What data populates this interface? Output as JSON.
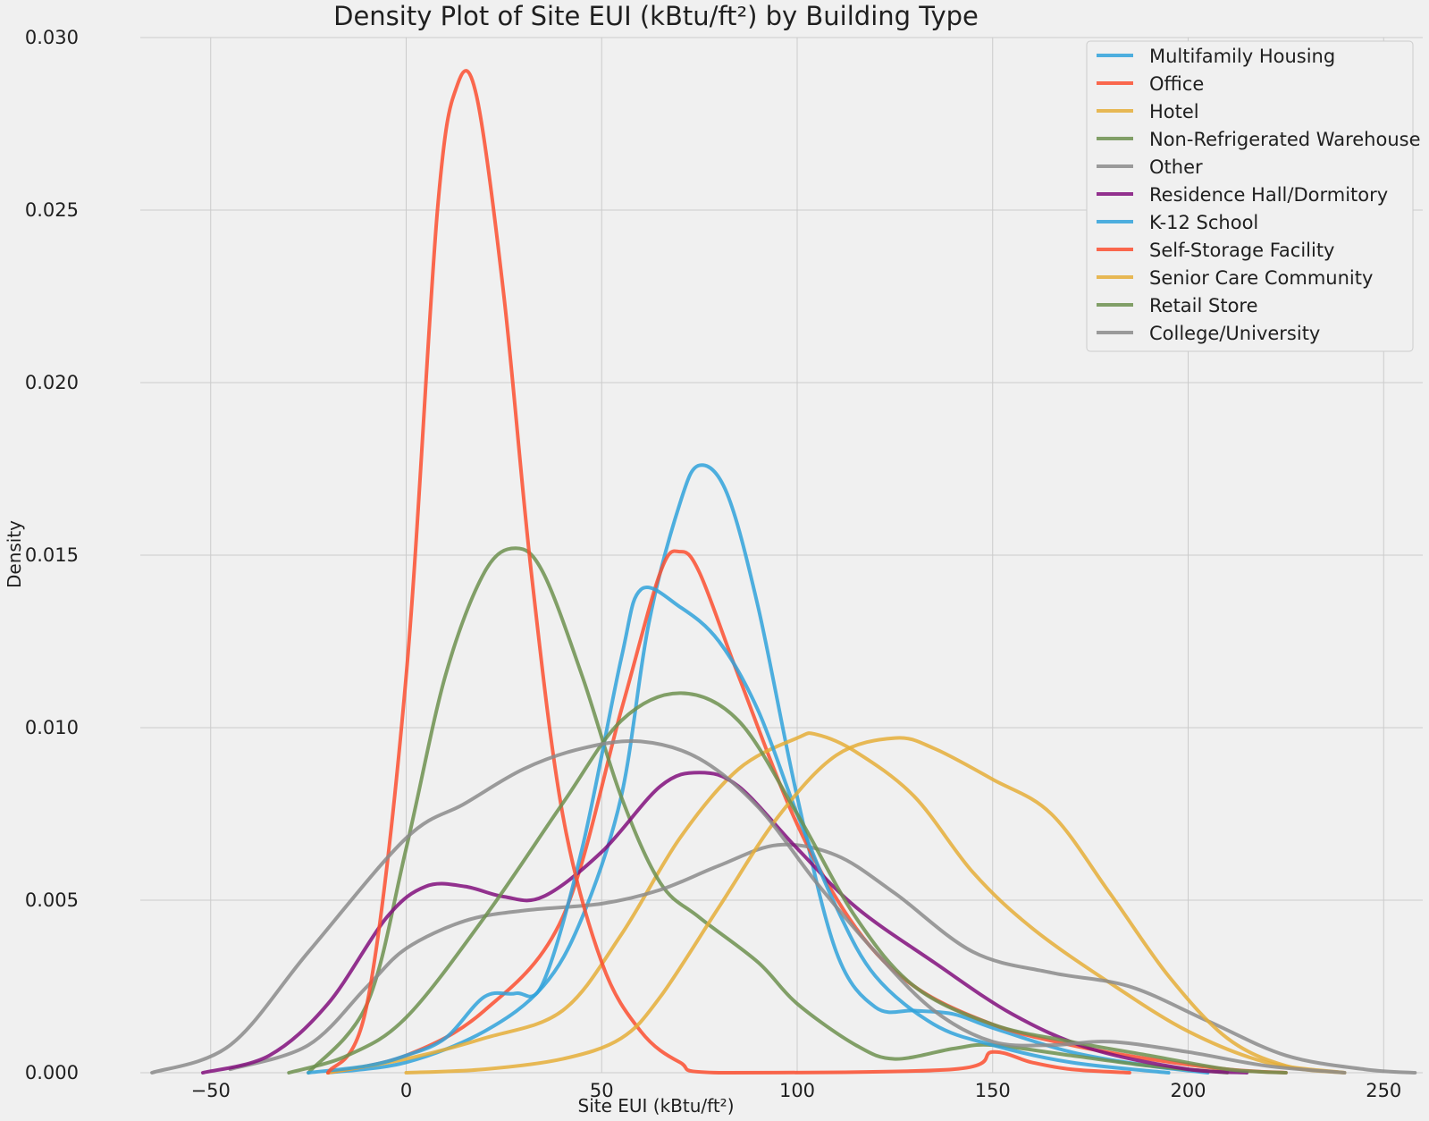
{
  "chart_data": {
    "type": "line",
    "title": "Density Plot of Site EUI (kBtu/ft²) by Building Type",
    "xlabel": "Site EUI (kBtu/ft²)",
    "ylabel": "Density",
    "xlim": [
      -68,
      260
    ],
    "ylim": [
      0,
      0.03
    ],
    "xticks": [
      -50,
      0,
      50,
      100,
      150,
      200,
      250
    ],
    "xtick_labels": [
      "−50",
      "0",
      "50",
      "100",
      "150",
      "200",
      "250"
    ],
    "yticks": [
      0,
      0.005,
      0.01,
      0.015,
      0.02,
      0.025,
      0.03
    ],
    "ytick_labels": [
      "0.000",
      "0.005",
      "0.010",
      "0.015",
      "0.020",
      "0.025",
      "0.030"
    ],
    "grid": true,
    "legend_position": "top-right",
    "series": [
      {
        "name": "Multifamily Housing",
        "color": "#30a2da",
        "points": [
          [
            -20,
            0
          ],
          [
            0,
            0.0003
          ],
          [
            20,
            0.0012
          ],
          [
            35,
            0.0025
          ],
          [
            45,
            0.0045
          ],
          [
            55,
            0.008
          ],
          [
            62,
            0.013
          ],
          [
            70,
            0.0165
          ],
          [
            75,
            0.0176
          ],
          [
            82,
            0.0168
          ],
          [
            90,
            0.0135
          ],
          [
            100,
            0.008
          ],
          [
            110,
            0.0035
          ],
          [
            120,
            0.0019
          ],
          [
            130,
            0.0018
          ],
          [
            140,
            0.0017
          ],
          [
            150,
            0.0013
          ],
          [
            170,
            0.0006
          ],
          [
            190,
            0.0002
          ],
          [
            205,
            0
          ]
        ]
      },
      {
        "name": "Office",
        "color": "#fc4f30",
        "points": [
          [
            -20,
            0
          ],
          [
            0,
            0.0005
          ],
          [
            20,
            0.0018
          ],
          [
            40,
            0.0045
          ],
          [
            55,
            0.0105
          ],
          [
            65,
            0.0145
          ],
          [
            70,
            0.0151
          ],
          [
            75,
            0.0145
          ],
          [
            85,
            0.0115
          ],
          [
            100,
            0.0072
          ],
          [
            115,
            0.0042
          ],
          [
            130,
            0.0025
          ],
          [
            150,
            0.0014
          ],
          [
            170,
            0.0008
          ],
          [
            190,
            0.0004
          ],
          [
            210,
            0.0001
          ],
          [
            225,
            0
          ]
        ]
      },
      {
        "name": "Hotel",
        "color": "#e5ae38",
        "points": [
          [
            -20,
            0
          ],
          [
            0,
            0.0004
          ],
          [
            20,
            0.001
          ],
          [
            40,
            0.0018
          ],
          [
            55,
            0.004
          ],
          [
            70,
            0.0068
          ],
          [
            85,
            0.0088
          ],
          [
            100,
            0.0097
          ],
          [
            105,
            0.0098
          ],
          [
            115,
            0.0093
          ],
          [
            130,
            0.008
          ],
          [
            145,
            0.0058
          ],
          [
            160,
            0.0042
          ],
          [
            180,
            0.0026
          ],
          [
            200,
            0.0012
          ],
          [
            220,
            0.0003
          ],
          [
            240,
            0
          ]
        ]
      },
      {
        "name": "Non-Refrigerated Warehouse",
        "color": "#6d904f",
        "points": [
          [
            -25,
            0
          ],
          [
            -10,
            0.002
          ],
          [
            0,
            0.0065
          ],
          [
            10,
            0.0115
          ],
          [
            20,
            0.0145
          ],
          [
            28,
            0.0152
          ],
          [
            35,
            0.0145
          ],
          [
            45,
            0.0115
          ],
          [
            55,
            0.008
          ],
          [
            65,
            0.0055
          ],
          [
            75,
            0.0045
          ],
          [
            90,
            0.0032
          ],
          [
            100,
            0.002
          ],
          [
            115,
            0.0008
          ],
          [
            125,
            0.0004
          ],
          [
            140,
            0.0007
          ],
          [
            150,
            0.0008
          ],
          [
            170,
            0.0005
          ],
          [
            190,
            0.0002
          ],
          [
            210,
            0
          ]
        ]
      },
      {
        "name": "Other",
        "color": "#8b8b8b",
        "points": [
          [
            -45,
            0.0001
          ],
          [
            -25,
            0.0008
          ],
          [
            -10,
            0.0025
          ],
          [
            0,
            0.0036
          ],
          [
            15,
            0.0044
          ],
          [
            30,
            0.0047
          ],
          [
            50,
            0.0049
          ],
          [
            65,
            0.0053
          ],
          [
            80,
            0.006
          ],
          [
            95,
            0.0066
          ],
          [
            110,
            0.0063
          ],
          [
            125,
            0.0052
          ],
          [
            145,
            0.0035
          ],
          [
            165,
            0.0029
          ],
          [
            185,
            0.0025
          ],
          [
            205,
            0.0015
          ],
          [
            225,
            0.0005
          ],
          [
            245,
            0.0001
          ],
          [
            258,
            0
          ]
        ]
      },
      {
        "name": "Residence Hall/Dormitory",
        "color": "#810f7c",
        "points": [
          [
            -52,
            0
          ],
          [
            -35,
            0.0005
          ],
          [
            -20,
            0.002
          ],
          [
            -5,
            0.0045
          ],
          [
            5,
            0.0054
          ],
          [
            15,
            0.0054
          ],
          [
            25,
            0.0051
          ],
          [
            35,
            0.0051
          ],
          [
            50,
            0.0064
          ],
          [
            65,
            0.0083
          ],
          [
            75,
            0.0087
          ],
          [
            85,
            0.0083
          ],
          [
            100,
            0.0065
          ],
          [
            115,
            0.0048
          ],
          [
            135,
            0.0032
          ],
          [
            155,
            0.0017
          ],
          [
            175,
            0.0007
          ],
          [
            200,
            0.0001
          ],
          [
            215,
            0
          ]
        ]
      },
      {
        "name": "K-12 School",
        "color": "#30a2da",
        "points": [
          [
            -25,
            0
          ],
          [
            -10,
            0.0002
          ],
          [
            0,
            0.0005
          ],
          [
            10,
            0.001
          ],
          [
            20,
            0.0022
          ],
          [
            28,
            0.0023
          ],
          [
            35,
            0.0026
          ],
          [
            45,
            0.0065
          ],
          [
            55,
            0.012
          ],
          [
            60,
            0.014
          ],
          [
            70,
            0.0135
          ],
          [
            80,
            0.0125
          ],
          [
            90,
            0.0105
          ],
          [
            100,
            0.0075
          ],
          [
            110,
            0.0048
          ],
          [
            120,
            0.0028
          ],
          [
            135,
            0.0014
          ],
          [
            150,
            0.0008
          ],
          [
            170,
            0.0003
          ],
          [
            195,
            0
          ]
        ]
      },
      {
        "name": "Self-Storage Facility",
        "color": "#fc4f30",
        "points": [
          [
            -20,
            0
          ],
          [
            -10,
            0.002
          ],
          [
            0,
            0.0115
          ],
          [
            8,
            0.025
          ],
          [
            13,
            0.0286
          ],
          [
            18,
            0.0283
          ],
          [
            25,
            0.0225
          ],
          [
            32,
            0.0145
          ],
          [
            40,
            0.0075
          ],
          [
            50,
            0.0032
          ],
          [
            60,
            0.0012
          ],
          [
            70,
            0.0003
          ],
          [
            80,
            0
          ],
          [
            140,
            0.0001
          ],
          [
            150,
            0.0006
          ],
          [
            160,
            0.0003
          ],
          [
            170,
            0.0001
          ],
          [
            185,
            0
          ]
        ]
      },
      {
        "name": "Senior Care Community",
        "color": "#e5ae38",
        "points": [
          [
            0,
            0
          ],
          [
            20,
            0.0001
          ],
          [
            40,
            0.0004
          ],
          [
            55,
            0.001
          ],
          [
            65,
            0.0022
          ],
          [
            80,
            0.0048
          ],
          [
            95,
            0.0074
          ],
          [
            110,
            0.0092
          ],
          [
            125,
            0.0097
          ],
          [
            135,
            0.0094
          ],
          [
            150,
            0.0085
          ],
          [
            165,
            0.0075
          ],
          [
            180,
            0.0052
          ],
          [
            195,
            0.0028
          ],
          [
            210,
            0.001
          ],
          [
            225,
            0.0002
          ],
          [
            240,
            0
          ]
        ]
      },
      {
        "name": "Retail Store",
        "color": "#6d904f",
        "points": [
          [
            -30,
            0
          ],
          [
            -15,
            0.0005
          ],
          [
            0,
            0.0016
          ],
          [
            20,
            0.0045
          ],
          [
            40,
            0.0078
          ],
          [
            55,
            0.0102
          ],
          [
            70,
            0.011
          ],
          [
            85,
            0.0102
          ],
          [
            100,
            0.0075
          ],
          [
            115,
            0.0045
          ],
          [
            130,
            0.0025
          ],
          [
            150,
            0.0014
          ],
          [
            170,
            0.0009
          ],
          [
            190,
            0.0005
          ],
          [
            210,
            0.0001
          ],
          [
            225,
            0
          ]
        ]
      },
      {
        "name": "College/University",
        "color": "#8b8b8b",
        "points": [
          [
            -65,
            0
          ],
          [
            -45,
            0.0008
          ],
          [
            -25,
            0.0035
          ],
          [
            0,
            0.0068
          ],
          [
            15,
            0.0078
          ],
          [
            30,
            0.0088
          ],
          [
            45,
            0.0094
          ],
          [
            60,
            0.0096
          ],
          [
            75,
            0.0091
          ],
          [
            90,
            0.0077
          ],
          [
            105,
            0.0055
          ],
          [
            120,
            0.0035
          ],
          [
            135,
            0.0018
          ],
          [
            150,
            0.0009
          ],
          [
            165,
            0.0008
          ],
          [
            180,
            0.0009
          ],
          [
            200,
            0.0006
          ],
          [
            220,
            0.0002
          ],
          [
            240,
            0
          ]
        ]
      }
    ]
  }
}
